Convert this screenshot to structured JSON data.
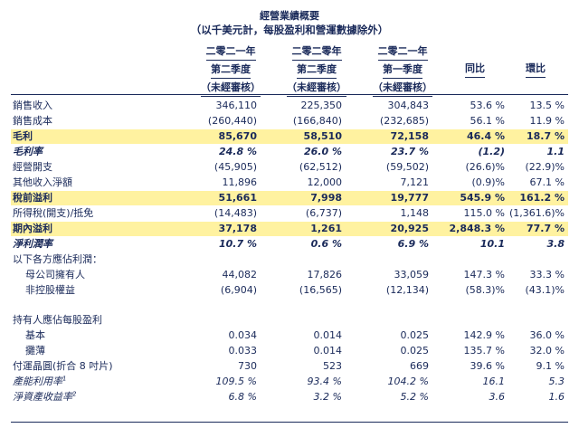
{
  "title": "經營業績概要",
  "subtitle": "（以千美元計，每股盈利和營運數據除外）",
  "headers": [
    [
      "二零二一年",
      "第二季度",
      "（未經審核）"
    ],
    [
      "二零二零年",
      "第二季度",
      "（未經審核）"
    ],
    [
      "二零二一年",
      "第一季度",
      "（未經審核）"
    ],
    [
      "",
      "同比",
      ""
    ],
    [
      "",
      "環比",
      ""
    ]
  ],
  "rows": [
    {
      "label": "銷售收入",
      "values": [
        "346,110",
        "225,350",
        "304,843",
        "53.6 %",
        "13.5 %"
      ],
      "style": ""
    },
    {
      "label": "銷售成本",
      "values": [
        "(260,440)",
        "(166,840)",
        "(232,685)",
        "56.1 %",
        "11.9 %"
      ],
      "style": ""
    },
    {
      "label": "毛利",
      "values": [
        "85,670",
        "58,510",
        "72,158",
        "46.4 %",
        "18.7 %"
      ],
      "style": "hl"
    },
    {
      "label": "毛利率",
      "values": [
        "24.8 %",
        "26.0 %",
        "23.7 %",
        "(1.2)",
        "1.1"
      ],
      "style": "bi"
    },
    {
      "label": "經營開支",
      "values": [
        "(45,905)",
        "(62,512)",
        "(59,502)",
        "(26.6)%",
        "(22.9)%"
      ],
      "style": ""
    },
    {
      "label": "其他收入淨額",
      "values": [
        "11,896",
        "12,000",
        "7,121",
        "(0.9)%",
        "67.1 %"
      ],
      "style": ""
    },
    {
      "label": "稅前溢利",
      "values": [
        "51,661",
        "7,998",
        "19,777",
        "545.9 %",
        "161.2 %"
      ],
      "style": "hl"
    },
    {
      "label": "所得稅(開支)/抵免",
      "values": [
        "(14,483)",
        "(6,737)",
        "1,148",
        "115.0 %",
        "(1,361.6)%"
      ],
      "style": ""
    },
    {
      "label": "期內溢利",
      "values": [
        "37,178",
        "1,261",
        "20,925",
        "2,848.3 %",
        "77.7 %"
      ],
      "style": "hl"
    },
    {
      "label": "淨利潤率",
      "values": [
        "10.7 %",
        "0.6 %",
        "6.9 %",
        "10.1",
        "3.8"
      ],
      "style": "bi"
    },
    {
      "label": "以下各方應佔利潤：",
      "values": [
        "",
        "",
        "",
        "",
        ""
      ],
      "style": ""
    },
    {
      "label": "母公司擁有人",
      "values": [
        "44,082",
        "17,826",
        "33,059",
        "147.3 %",
        "33.3 %"
      ],
      "style": "ind"
    },
    {
      "label": "非控股權益",
      "values": [
        "(6,904)",
        "(16,565)",
        "(12,134)",
        "(58.3)%",
        "(43.1)%"
      ],
      "style": "ind"
    },
    {
      "label": "",
      "values": [
        "",
        "",
        "",
        "",
        ""
      ],
      "style": "gap"
    },
    {
      "label": "持有人應佔每股盈利",
      "values": [
        "",
        "",
        "",
        "",
        ""
      ],
      "style": ""
    },
    {
      "label": "基本",
      "values": [
        "0.034",
        "0.014",
        "0.025",
        "142.9 %",
        "36.0 %"
      ],
      "style": "ind"
    },
    {
      "label": "攤薄",
      "values": [
        "0.033",
        "0.014",
        "0.025",
        "135.7 %",
        "32.0 %"
      ],
      "style": "ind"
    },
    {
      "label": "付運晶圓(折合 8 吋片)",
      "values": [
        "730",
        "523",
        "669",
        "39.6 %",
        "9.1 %"
      ],
      "style": ""
    },
    {
      "label": "產能利用率",
      "values": [
        "109.5 %",
        "93.4 %",
        "104.2 %",
        "16.1",
        "5.3"
      ],
      "style": "i",
      "sup": "1"
    },
    {
      "label": "淨資產收益率",
      "values": [
        "6.8 %",
        "3.2 %",
        "5.2 %",
        "3.6",
        "1.6"
      ],
      "style": "i",
      "sup": "2"
    }
  ]
}
